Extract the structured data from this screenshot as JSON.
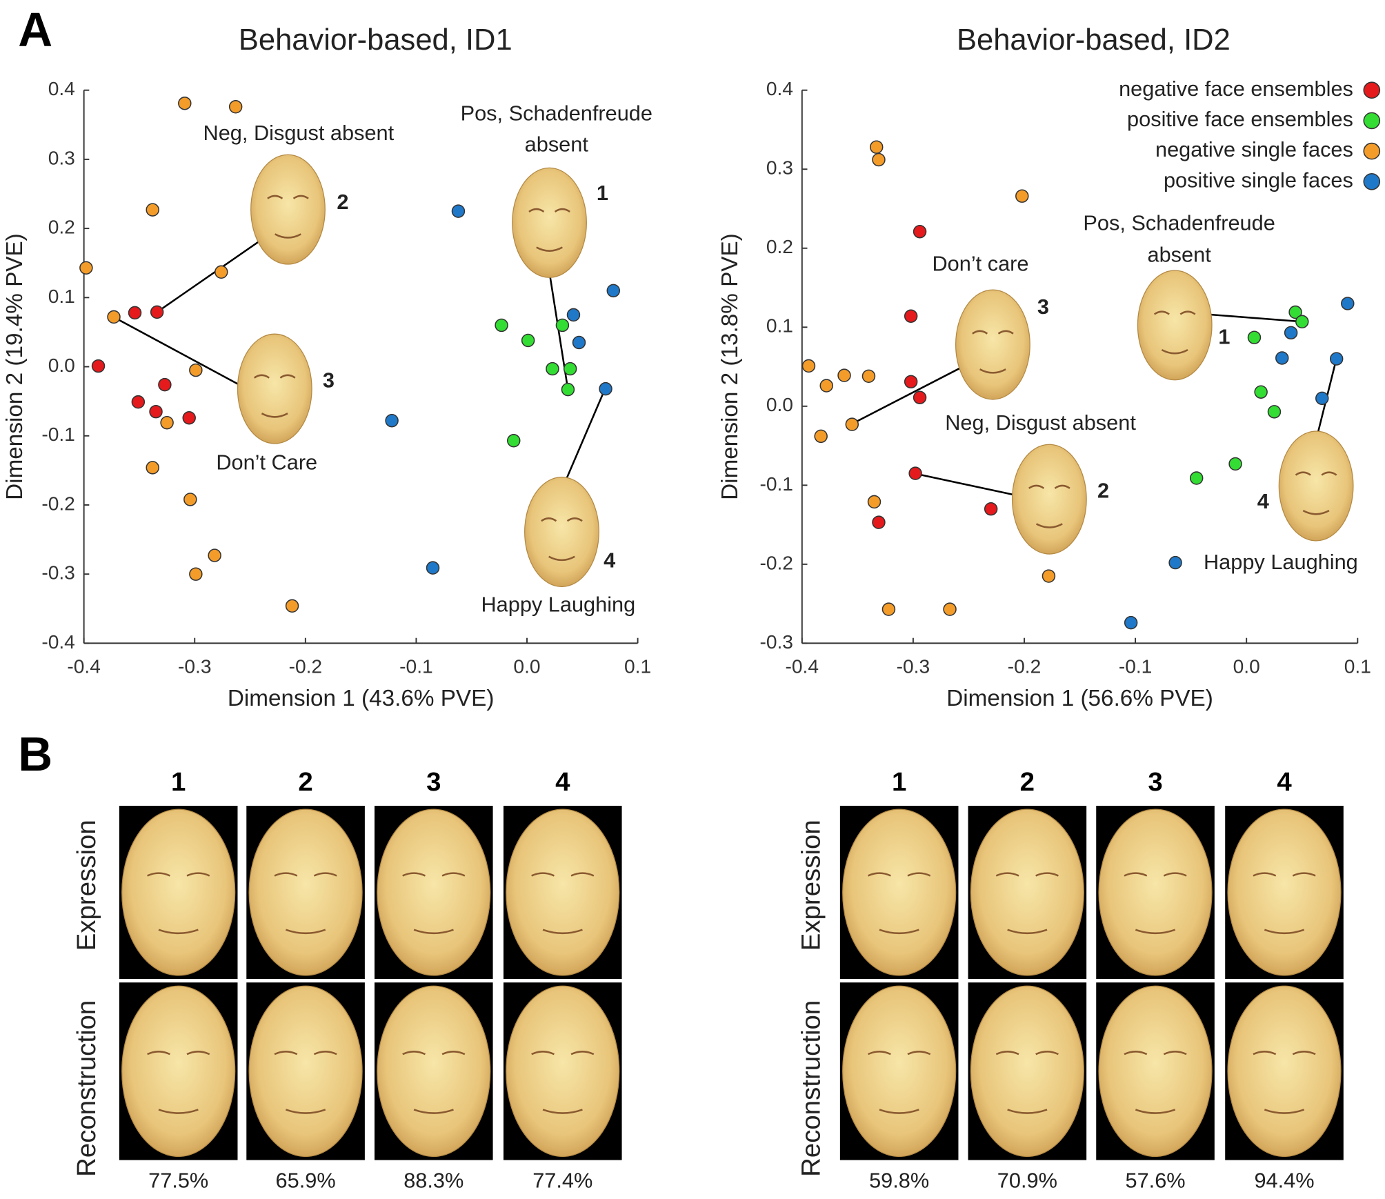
{
  "panel_labels": [
    "A",
    "B"
  ],
  "chart_data": [
    {
      "type": "scatter",
      "title": "Behavior-based, ID1",
      "xlabel": "Dimension 1 (43.6% PVE)",
      "ylabel": "Dimension 2 (19.4% PVE)",
      "xlim": [
        -0.4,
        0.1
      ],
      "ylim": [
        -0.4,
        0.4
      ],
      "xticks": [
        -0.4,
        -0.3,
        -0.2,
        -0.1,
        {
          "value": 0,
          "label": "0.0"
        },
        0.1
      ],
      "yticks": [
        -0.4,
        -0.3,
        -0.2,
        -0.1,
        {
          "value": 0,
          "label": "0.0"
        },
        0.1,
        0.2,
        0.3,
        0.4
      ],
      "annotations": [
        "Neg, Disgust absent",
        "Pos, Schadenfreude",
        "absent",
        "Don’t Care",
        "Happy Laughing"
      ],
      "face_labels": [
        "2",
        "3",
        "1",
        "4"
      ],
      "series": [
        {
          "color": "#e41a1c",
          "x": [
            -0.354,
            -0.334,
            -0.387,
            -0.327,
            -0.351,
            -0.335,
            -0.305
          ],
          "values": [
            0.078,
            0.079,
            0.001,
            -0.026,
            -0.051,
            -0.065,
            -0.074
          ]
        },
        {
          "color": "#33dd33",
          "x": [
            -0.023,
            0.001,
            0.032,
            0.023,
            0.039,
            0.037,
            -0.012
          ],
          "values": [
            0.06,
            0.038,
            0.06,
            -0.003,
            -0.003,
            -0.033,
            -0.107
          ]
        },
        {
          "color": "#f39c2a",
          "x": [
            -0.309,
            -0.263,
            -0.338,
            -0.398,
            -0.276,
            -0.373,
            -0.299,
            -0.325,
            -0.338,
            -0.304,
            -0.282,
            -0.299,
            -0.212
          ],
          "values": [
            0.381,
            0.376,
            0.227,
            0.143,
            0.137,
            0.072,
            -0.005,
            -0.081,
            -0.146,
            -0.192,
            -0.273,
            -0.3,
            -0.346
          ]
        },
        {
          "color": "#1f78c8",
          "x": [
            -0.062,
            0.078,
            0.042,
            0.047,
            0.071,
            -0.122,
            -0.085
          ],
          "values": [
            0.225,
            0.11,
            0.075,
            0.035,
            -0.032,
            -0.078,
            -0.291
          ]
        }
      ]
    },
    {
      "type": "scatter",
      "title": "Behavior-based, ID2",
      "xlabel": "Dimension 1 (56.6% PVE)",
      "ylabel": "Dimension 2 (13.8% PVE)",
      "xlim": [
        -0.4,
        0.1
      ],
      "ylim": [
        -0.3,
        0.4
      ],
      "xticks": [
        -0.4,
        -0.3,
        -0.2,
        -0.1,
        {
          "value": 0,
          "label": "0.0"
        },
        0.1
      ],
      "yticks": [
        -0.3,
        -0.2,
        -0.1,
        {
          "value": 0,
          "label": "0.0"
        },
        0.1,
        0.2,
        0.3,
        0.4
      ],
      "legend": "upper right",
      "annotations": [
        "Don’t care",
        "Pos, Schadenfreude",
        "absent",
        "Neg, Disgust absent",
        "Happy Laughing"
      ],
      "face_labels": [
        "3",
        "1",
        "2",
        "4"
      ],
      "series": [
        {
          "name": "negative face ensembles",
          "color": "#e41a1c",
          "x": [
            -0.294,
            -0.302,
            -0.302,
            -0.294,
            -0.298,
            -0.23,
            -0.331
          ],
          "values": [
            0.221,
            0.114,
            0.031,
            0.011,
            -0.085,
            -0.13,
            -0.147
          ]
        },
        {
          "name": "positive face ensembles",
          "color": "#33dd33",
          "x": [
            0.044,
            0.05,
            0.007,
            0.013,
            0.025,
            -0.01,
            -0.045
          ],
          "values": [
            0.119,
            0.107,
            0.087,
            0.018,
            -0.007,
            -0.073,
            -0.091
          ]
        },
        {
          "name": "negative single faces",
          "color": "#f39c2a",
          "x": [
            -0.333,
            -0.331,
            -0.202,
            -0.394,
            -0.378,
            -0.362,
            -0.34,
            -0.355,
            -0.383,
            -0.335,
            -0.322,
            -0.267,
            -0.178
          ],
          "values": [
            0.328,
            0.312,
            0.266,
            0.051,
            0.026,
            0.039,
            0.038,
            -0.023,
            -0.038,
            -0.121,
            -0.257,
            -0.257,
            -0.215
          ]
        },
        {
          "name": "positive single faces",
          "color": "#1f78c8",
          "x": [
            0.091,
            0.04,
            0.032,
            0.081,
            0.068,
            -0.064,
            -0.104
          ],
          "values": [
            0.13,
            0.093,
            0.061,
            0.06,
            0.01,
            -0.198,
            -0.274
          ]
        }
      ]
    }
  ],
  "panel_b": [
    {
      "columns": [
        "1",
        "2",
        "3",
        "4"
      ],
      "rows": [
        "Expression",
        "Reconstruction"
      ],
      "percentages": [
        "77.5%",
        "65.9%",
        "88.3%",
        "77.4%"
      ]
    },
    {
      "columns": [
        "1",
        "2",
        "3",
        "4"
      ],
      "rows": [
        "Expression",
        "Reconstruction"
      ],
      "percentages": [
        "59.8%",
        "70.9%",
        "57.6%",
        "94.4%"
      ]
    }
  ]
}
